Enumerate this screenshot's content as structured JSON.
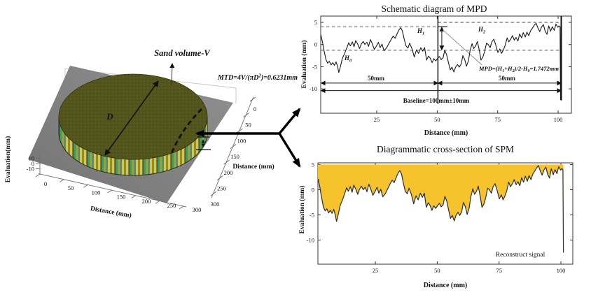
{
  "window": {
    "bg": "#ffffff"
  },
  "left3d": {
    "sand_volume_label": "Sand volume-V",
    "diameter_label": "D",
    "mtd": {
      "p1": "MTD=4V/(πD",
      "sup": "2",
      "p2": ")=0.6231mm"
    },
    "zlabel": "Evaluation(mm)",
    "xlabel": "Distance (mm)",
    "ylabel_right": "Distance (mm)",
    "zticks": [
      "10",
      "0",
      "-10"
    ],
    "xticks": [
      "0",
      "50",
      "100",
      "150",
      "200",
      "250",
      "300"
    ],
    "yticks": [
      "0",
      "50",
      "100",
      "150",
      "200",
      "250",
      "300"
    ],
    "colors": {
      "disk_top": "#53551d",
      "plane": "#828282"
    }
  },
  "mpd": {
    "title": "Schematic diagram of MPD",
    "xlabel": "Distance (mm)",
    "ylabel": "Evaluation (mm)",
    "h0": {
      "base": "H",
      "sub": "0"
    },
    "h1": {
      "base": "H",
      "sub": "1"
    },
    "h2": {
      "base": "H",
      "sub": "2"
    },
    "span_left": "50mm",
    "span_right": "50mm",
    "baseline_label": "Baseline=100mm±10mm",
    "formula": {
      "p1": "MPD=(H",
      "s1": "1",
      "p2": "+H",
      "s2": "2",
      "p3": ")/2-H",
      "s3": "0",
      "p4": "=1.7472mm"
    }
  },
  "spm": {
    "title": "Diagrammatic cross-section of SPM",
    "xlabel": "Distance (mm)",
    "ylabel": "Evaluation (mm)",
    "signal_label": "Reconstruct signal"
  },
  "chart_data": [
    {
      "id": "sand_patch_3d",
      "type": "3d-surface",
      "description": "Circular sand patch disk of diameter D lying on a flat gray plane; disk top is dark olive, side wall shows multicolor height stripes",
      "xlabel": "Distance (mm)",
      "xticks": [
        0,
        50,
        100,
        150,
        200,
        250,
        300
      ],
      "ylabel": "Distance (mm)",
      "yticks": [
        0,
        50,
        100,
        150,
        200,
        250,
        300
      ],
      "zlabel": "Evaluation(mm)",
      "zticks": [
        10,
        0,
        -10
      ],
      "annotations": [
        "Sand volume-V",
        "MTD=4V/(πD2)=0.6231mm",
        "D"
      ]
    },
    {
      "id": "mpd",
      "type": "line",
      "title": "Schematic diagram of MPD",
      "xlabel": "Distance (mm)",
      "ylabel": "Evaluation (mm)",
      "xlim": [
        0,
        105.5
      ],
      "ylim": [
        -15.5,
        6.4
      ],
      "xticks": [
        25,
        50,
        75,
        100
      ],
      "yticks": [
        5,
        0,
        -5,
        -10
      ],
      "line_color": "#1a1a1a",
      "profile": [
        [
          0.8,
          -0.6
        ],
        [
          1.2,
          0.3
        ],
        [
          1.9,
          2.1
        ],
        [
          2.6,
          0.4
        ],
        [
          3.2,
          -1.4
        ],
        [
          4.0,
          -3.4
        ],
        [
          4.7,
          -4.2
        ],
        [
          5.4,
          -3.8
        ],
        [
          6.1,
          -4.6
        ],
        [
          6.8,
          -4.1
        ],
        [
          7.5,
          -4.7
        ],
        [
          8.2,
          -3.9
        ],
        [
          8.8,
          -5.0
        ],
        [
          9.3,
          -6.3
        ],
        [
          9.9,
          -5.1
        ],
        [
          10.8,
          -3.1
        ],
        [
          11.8,
          -1.9
        ],
        [
          12.8,
          -0.5
        ],
        [
          13.4,
          0.4
        ],
        [
          14.1,
          -0.3
        ],
        [
          14.9,
          0.6
        ],
        [
          15.6,
          -0.5
        ],
        [
          16.3,
          0.9
        ],
        [
          17.1,
          0.1
        ],
        [
          17.9,
          -0.9
        ],
        [
          18.6,
          0.1
        ],
        [
          19.4,
          0.7
        ],
        [
          20.1,
          0.0
        ],
        [
          20.9,
          0.5
        ],
        [
          21.6,
          -0.4
        ],
        [
          22.4,
          1.1
        ],
        [
          23.1,
          0.2
        ],
        [
          24.0,
          -1.1
        ],
        [
          24.9,
          -0.3
        ],
        [
          25.7,
          0.5
        ],
        [
          26.4,
          -0.7
        ],
        [
          27.2,
          0.1
        ],
        [
          28.0,
          -1.4
        ],
        [
          29.0,
          -0.8
        ],
        [
          30.0,
          0.2
        ],
        [
          31.0,
          1.2
        ],
        [
          31.8,
          1.9
        ],
        [
          32.6,
          1.4
        ],
        [
          33.4,
          2.4
        ],
        [
          34.2,
          3.3
        ],
        [
          34.9,
          3.8
        ],
        [
          35.6,
          3.1
        ],
        [
          36.3,
          1.3
        ],
        [
          37.1,
          -0.3
        ],
        [
          37.9,
          -0.8
        ],
        [
          38.6,
          0.3
        ],
        [
          39.6,
          -1.0
        ],
        [
          40.5,
          -2.8
        ],
        [
          41.4,
          -1.2
        ],
        [
          42.3,
          -2.0
        ],
        [
          43.2,
          -0.7
        ],
        [
          44.0,
          -1.5
        ],
        [
          44.8,
          -0.7
        ],
        [
          45.6,
          -3.5
        ],
        [
          46.4,
          -2.6
        ],
        [
          47.1,
          -3.1
        ],
        [
          47.9,
          -4.1
        ],
        [
          48.6,
          -3.2
        ],
        [
          49.4,
          -3.7
        ],
        [
          50.1,
          -3.2
        ],
        [
          50.9,
          -2.7
        ],
        [
          51.6,
          -3.4
        ],
        [
          52.4,
          -3.0
        ],
        [
          53.1,
          -1.3
        ],
        [
          53.9,
          -2.3
        ],
        [
          54.6,
          -4.0
        ],
        [
          55.4,
          -5.7
        ],
        [
          56.1,
          -5.1
        ],
        [
          56.9,
          -6.2
        ],
        [
          57.6,
          -5.1
        ],
        [
          58.4,
          -4.5
        ],
        [
          59.1,
          -5.1
        ],
        [
          59.9,
          -4.4
        ],
        [
          60.6,
          -2.5
        ],
        [
          61.4,
          -3.4
        ],
        [
          62.1,
          -4.9
        ],
        [
          62.9,
          -3.7
        ],
        [
          63.6,
          -1.4
        ],
        [
          64.4,
          0.2
        ],
        [
          65.1,
          -0.9
        ],
        [
          65.9,
          -0.3
        ],
        [
          66.6,
          0.7
        ],
        [
          67.4,
          -1.3
        ],
        [
          68.1,
          -3.5
        ],
        [
          68.9,
          -2.8
        ],
        [
          69.6,
          -1.6
        ],
        [
          70.4,
          0.3
        ],
        [
          71.1,
          0.0
        ],
        [
          71.9,
          -0.7
        ],
        [
          72.6,
          0.6
        ],
        [
          73.4,
          1.2
        ],
        [
          74.1,
          0.1
        ],
        [
          75.1,
          -1.8
        ],
        [
          75.9,
          -1.0
        ],
        [
          76.6,
          -2.0
        ],
        [
          77.4,
          -1.2
        ],
        [
          78.1,
          -0.2
        ],
        [
          78.9,
          1.5
        ],
        [
          79.6,
          0.6
        ],
        [
          80.4,
          1.2
        ],
        [
          81.1,
          2.0
        ],
        [
          81.9,
          1.0
        ],
        [
          82.6,
          1.6
        ],
        [
          83.4,
          0.8
        ],
        [
          84.1,
          2.4
        ],
        [
          84.9,
          1.5
        ],
        [
          85.6,
          2.7
        ],
        [
          86.4,
          1.7
        ],
        [
          87.1,
          2.8
        ],
        [
          87.9,
          2.0
        ],
        [
          88.6,
          3.1
        ],
        [
          89.4,
          3.7
        ],
        [
          90.1,
          4.3
        ],
        [
          90.9,
          4.8
        ],
        [
          91.6,
          3.8
        ],
        [
          92.4,
          2.9
        ],
        [
          93.1,
          3.9
        ],
        [
          93.9,
          4.5
        ],
        [
          94.6,
          3.1
        ],
        [
          95.4,
          2.3
        ],
        [
          96.1,
          4.2
        ],
        [
          96.9,
          3.0
        ],
        [
          97.6,
          4.0
        ],
        [
          98.4,
          3.2
        ],
        [
          99.1,
          4.6
        ],
        [
          99.9,
          3.9
        ],
        [
          100.4,
          4.2
        ],
        [
          100.8,
          4.0
        ],
        [
          101.0,
          -12.5
        ]
      ],
      "dashed_levels": [
        {
          "y": 4.0,
          "x1": 1.8,
          "x2": 50.3
        },
        {
          "y": 5.0,
          "x1": 50.3,
          "x2": 101.3
        },
        {
          "y": -1.3,
          "x1": 1.8,
          "x2": 101.3
        }
      ],
      "vlines": [
        {
          "x": 50.3,
          "y1": 6.4,
          "y2": -13.4,
          "w": 1.5
        },
        {
          "x": 101.3,
          "y1": 6.4,
          "y2": -12.6,
          "w": 2
        }
      ],
      "span_arrows": [
        {
          "y": -8.7,
          "x1": 2.0,
          "x2": 50.3
        },
        {
          "y": -8.7,
          "x1": 50.3,
          "x2": 101.3
        },
        {
          "y": -10.4,
          "x1": 2.0,
          "x2": 101.3
        }
      ],
      "mpd_arrow": {
        "x": 51.9,
        "y1": 3.9,
        "y2": -1.2
      },
      "cap_line": {
        "y": 4.0,
        "x1": 50.5,
        "x2": 54.2
      },
      "leader": {
        "x1": 52.3,
        "y1": 3.3,
        "x2": 68.5,
        "y2": -4.6
      },
      "mpd_value_mm": 1.7472,
      "baseline_mm": "100±10",
      "segment_mm": [
        50,
        50
      ]
    },
    {
      "id": "spm",
      "type": "area",
      "title": "Diagrammatic cross-section of SPM",
      "xlabel": "Distance (mm)",
      "ylabel": "Evaluation (mm)",
      "xlim": [
        0,
        105
      ],
      "ylim": [
        -14.8,
        5.3
      ],
      "xticks": [
        25,
        50,
        75,
        100
      ],
      "yticks": [
        5,
        0,
        -5,
        -10
      ],
      "fill_to": 5,
      "fill_color": "#F6C32C",
      "line_color": "#2b2b2b",
      "profile_ref": "mpd",
      "label": "Reconstruct signal"
    }
  ]
}
